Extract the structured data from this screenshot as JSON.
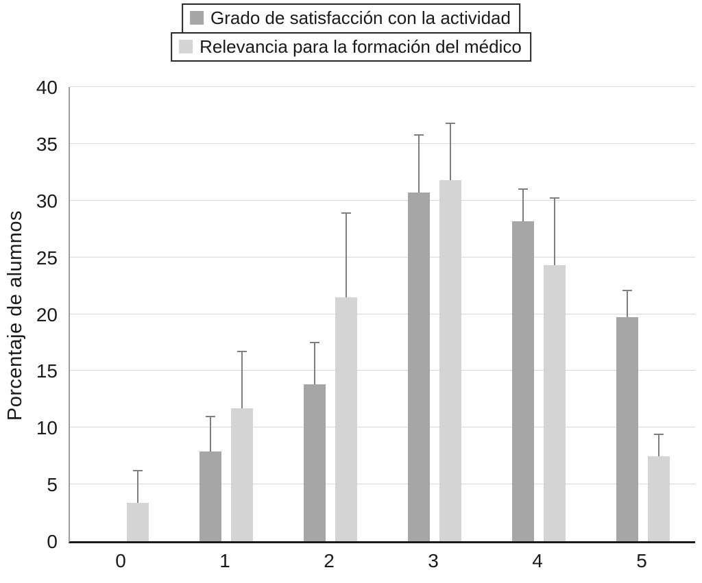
{
  "chart_data": {
    "type": "bar",
    "title": "",
    "xlabel": "",
    "ylabel": "Porcentaje de alumnos",
    "ylim": [
      0,
      40
    ],
    "yticks": [
      0,
      5,
      10,
      15,
      20,
      25,
      30,
      35,
      40
    ],
    "categories": [
      "0",
      "1",
      "2",
      "3",
      "4",
      "5"
    ],
    "grid": true,
    "legend_position": "top-center",
    "error_bars": "upper-only",
    "error_bar_color": "#7f7f7f",
    "series": [
      {
        "name": "Grado de satisfacción con la actividad",
        "color": "#a6a6a6",
        "values": [
          0,
          7.9,
          13.8,
          30.7,
          28.2,
          19.7
        ],
        "errors_upper": [
          0,
          3.1,
          3.7,
          5.1,
          2.8,
          2.4
        ]
      },
      {
        "name": "Relevancia para la formación del médico",
        "color": "#d4d4d4",
        "values": [
          3.4,
          11.7,
          21.5,
          31.8,
          24.3,
          7.5
        ],
        "errors_upper": [
          2.8,
          5.0,
          7.4,
          5.0,
          5.9,
          1.9
        ]
      }
    ]
  }
}
